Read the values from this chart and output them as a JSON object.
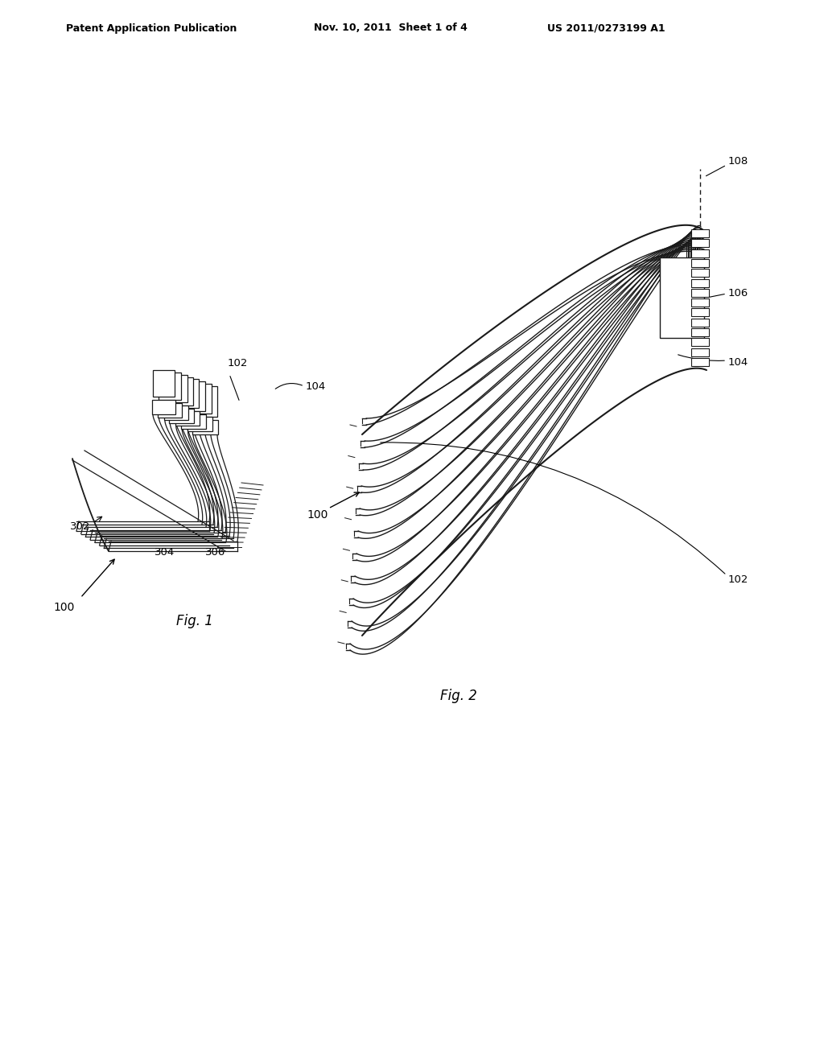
{
  "background_color": "#ffffff",
  "header_text": "Patent Application Publication",
  "header_date": "Nov. 10, 2011  Sheet 1 of 4",
  "header_patent": "US 2011/0273199 A1",
  "fig1_label": "Fig. 1",
  "fig2_label": "Fig. 2",
  "ref_100_fig1": "100",
  "ref_100_fig2": "100",
  "ref_102_fig1": "102",
  "ref_102_fig2": "102",
  "ref_104_fig1": "104",
  "ref_104_fig2": "104",
  "ref_106": "106",
  "ref_108": "108",
  "ref_302": "302",
  "ref_304": "304",
  "ref_306": "306",
  "line_color": "#1a1a1a",
  "text_color": "#000000"
}
